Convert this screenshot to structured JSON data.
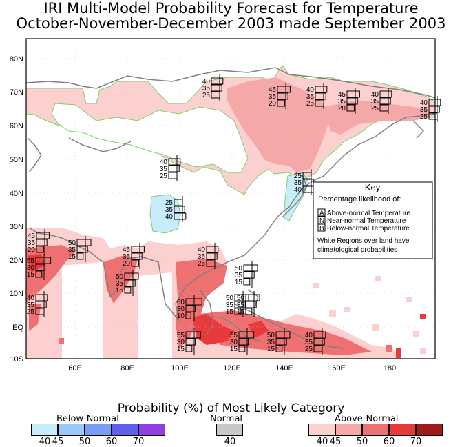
{
  "title_line1": "IRI Multi-Model Probability Forecast for Temperature",
  "title_line2": "October-November-December 2003 made September 2003",
  "y_ticks": [
    "80N",
    "70N",
    "60N",
    "50N",
    "40N",
    "30N",
    "20N",
    "10N",
    "EQ",
    "10S"
  ],
  "x_ticks": [
    "60E",
    "80E",
    "100E",
    "120E",
    "140E",
    "160E",
    "180"
  ],
  "key": {
    "title": "Key",
    "subtitle": "Percentage likelihood of:",
    "a_letter": "A",
    "a_text": "Above-normal Temperature",
    "n_letter": "N",
    "n_text": "Near-normal Temperature",
    "b_letter": "B",
    "b_text": "Below-normal Temperature",
    "note1": "White Regions over land have",
    "note2": "climatological probabilities"
  },
  "legend": {
    "title": "Probability (%) of Most Likely Category",
    "below_label": "Below-Normal",
    "normal_label": "Normal",
    "above_label": "Above-Normal",
    "below_values": [
      "40",
      "45",
      "50",
      "60",
      "70"
    ],
    "normal_values": [
      "40"
    ],
    "above_values": [
      "40",
      "45",
      "50",
      "60",
      "70"
    ],
    "below_colors": [
      "#c8ecfa",
      "#9cc8f8",
      "#7a9cf4",
      "#6060ea",
      "#9040e0"
    ],
    "normal_colors": [
      "#c8c8c8"
    ],
    "above_colors": [
      "#fdd0d0",
      "#f4a8a8",
      "#ee7070",
      "#e83a3a",
      "#a01a1a"
    ]
  },
  "boxes": [
    {
      "a": "40",
      "n": "35",
      "b": "25"
    },
    {
      "a": "45",
      "n": "35",
      "b": "20"
    },
    {
      "a": "40",
      "n": "35",
      "b": "25"
    },
    {
      "a": "45",
      "n": "35",
      "b": "20"
    },
    {
      "a": "40",
      "n": "35",
      "b": "25"
    },
    {
      "a": "40",
      "n": "35",
      "b": "25"
    },
    {
      "a": "40",
      "n": "35",
      "b": "25"
    },
    {
      "a": "25",
      "n": "35",
      "b": "40"
    },
    {
      "a": "25",
      "n": "35",
      "b": "40"
    },
    {
      "a": "45",
      "n": "35",
      "b": "20"
    },
    {
      "a": "50",
      "n": "35",
      "b": "15"
    },
    {
      "a": "45",
      "n": "35",
      "b": "20"
    },
    {
      "a": "40",
      "n": "35",
      "b": "25"
    },
    {
      "a": "55",
      "n": "30",
      "b": "15"
    },
    {
      "a": "50",
      "n": "35",
      "b": "15"
    },
    {
      "a": "50",
      "n": "35",
      "b": "15"
    },
    {
      "a": "40",
      "n": "35",
      "b": "25"
    },
    {
      "a": "50",
      "n": "35",
      "b": "15"
    },
    {
      "a": "60",
      "n": "30",
      "b": "10"
    },
    {
      "a": "50",
      "n": "35",
      "b": "15"
    },
    {
      "a": "55",
      "n": "30",
      "b": "15"
    },
    {
      "a": "55",
      "n": "30",
      "b": "15"
    },
    {
      "a": "50",
      "n": "35",
      "b": "15"
    },
    {
      "a": "40",
      "n": "35",
      "b": "25"
    }
  ]
}
